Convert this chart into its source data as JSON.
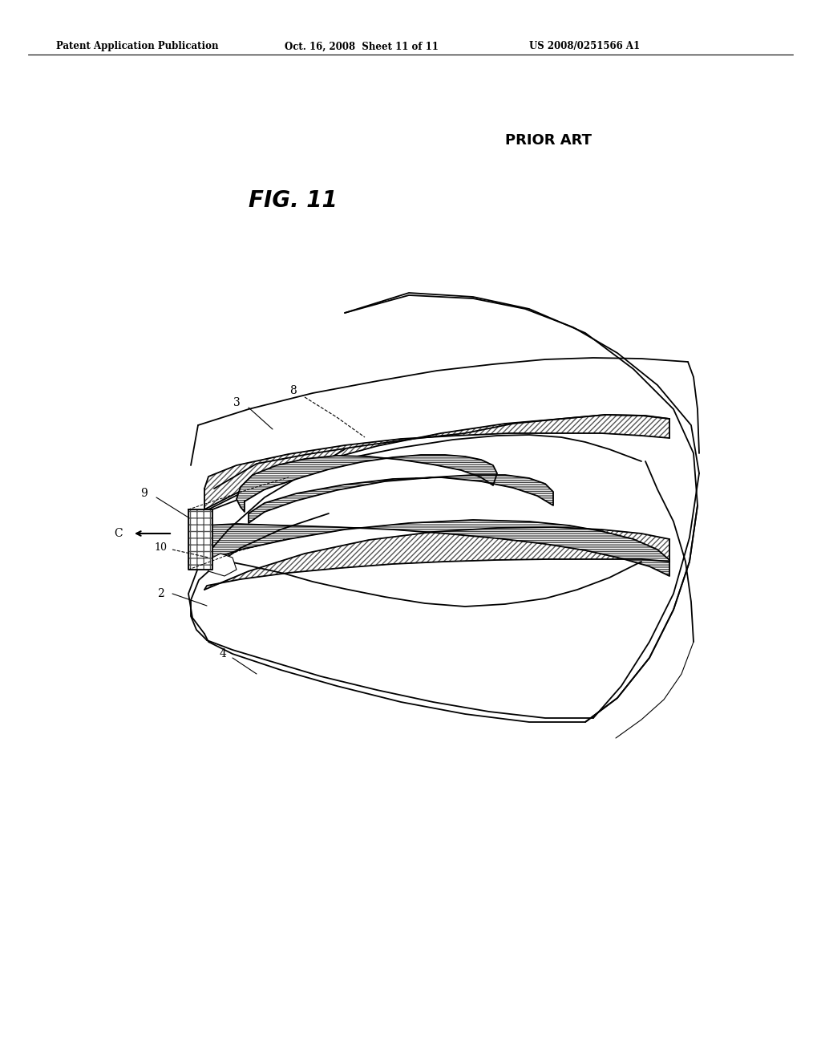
{
  "title_header": "Patent Application Publication",
  "date_header": "Oct. 16, 2008  Sheet 11 of 11",
  "patent_header": "US 2008/0251566 A1",
  "prior_art_label": "PRIOR ART",
  "fig_label": "FIG. 11",
  "background_color": "#ffffff",
  "line_color": "#000000"
}
